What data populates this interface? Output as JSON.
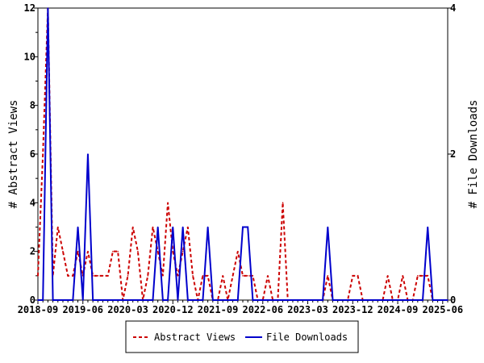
{
  "chart_data": {
    "type": "line",
    "title": "",
    "xlabel": "",
    "ylabel": "# Abstract Views",
    "y2label": "# File Downloads",
    "x_start": "2018-09",
    "x_end": "2025-07",
    "x_interval": "month",
    "xtick_labels": [
      "2018-09",
      "2019-06",
      "2020-03",
      "2020-12",
      "2021-09",
      "2022-06",
      "2023-03",
      "2023-12",
      "2024-09",
      "2025-06"
    ],
    "xtick_every_months": 9,
    "ylim": [
      0,
      12
    ],
    "yticks": [
      0,
      2,
      4,
      6,
      8,
      10,
      12
    ],
    "y2lim": [
      0,
      4
    ],
    "y2ticks": [
      0,
      2,
      4
    ],
    "grid": false,
    "legend_position": "bottom",
    "series": [
      {
        "name": "Abstract Views",
        "axis": "left",
        "color": "#cc0000",
        "style": "dashed",
        "values": [
          1,
          6,
          12,
          1,
          3,
          2,
          1,
          1,
          2,
          1,
          2,
          1,
          1,
          1,
          1,
          2,
          2,
          0,
          1,
          3,
          2,
          0,
          1,
          3,
          2,
          1,
          4,
          2,
          1,
          2,
          3,
          1,
          0,
          1,
          1,
          0,
          0,
          1,
          0,
          1,
          2,
          1,
          1,
          1,
          0,
          0,
          1,
          0,
          0,
          4,
          0,
          0,
          0,
          0,
          0,
          0,
          0,
          0,
          1,
          0,
          0,
          0,
          0,
          1,
          1,
          0,
          0,
          0,
          0,
          0,
          1,
          0,
          0,
          1,
          0,
          0,
          1,
          1,
          1,
          0,
          0,
          0,
          0
        ]
      },
      {
        "name": "File Downloads",
        "axis": "right",
        "color": "#0000cc",
        "style": "solid",
        "values": [
          0,
          0,
          4,
          0,
          0,
          0,
          0,
          0,
          1,
          0,
          2,
          0,
          0,
          0,
          0,
          0,
          0,
          0,
          0,
          0,
          0,
          0,
          0,
          0,
          1,
          0,
          0,
          1,
          0,
          1,
          0,
          0,
          0,
          0,
          1,
          0,
          0,
          0,
          0,
          0,
          0,
          1,
          1,
          0,
          0,
          0,
          0,
          0,
          0,
          0,
          0,
          0,
          0,
          0,
          0,
          0,
          0,
          0,
          1,
          0,
          0,
          0,
          0,
          0,
          0,
          0,
          0,
          0,
          0,
          0,
          0,
          0,
          0,
          0,
          0,
          0,
          0,
          0,
          1,
          0,
          0,
          0,
          0
        ]
      }
    ]
  }
}
